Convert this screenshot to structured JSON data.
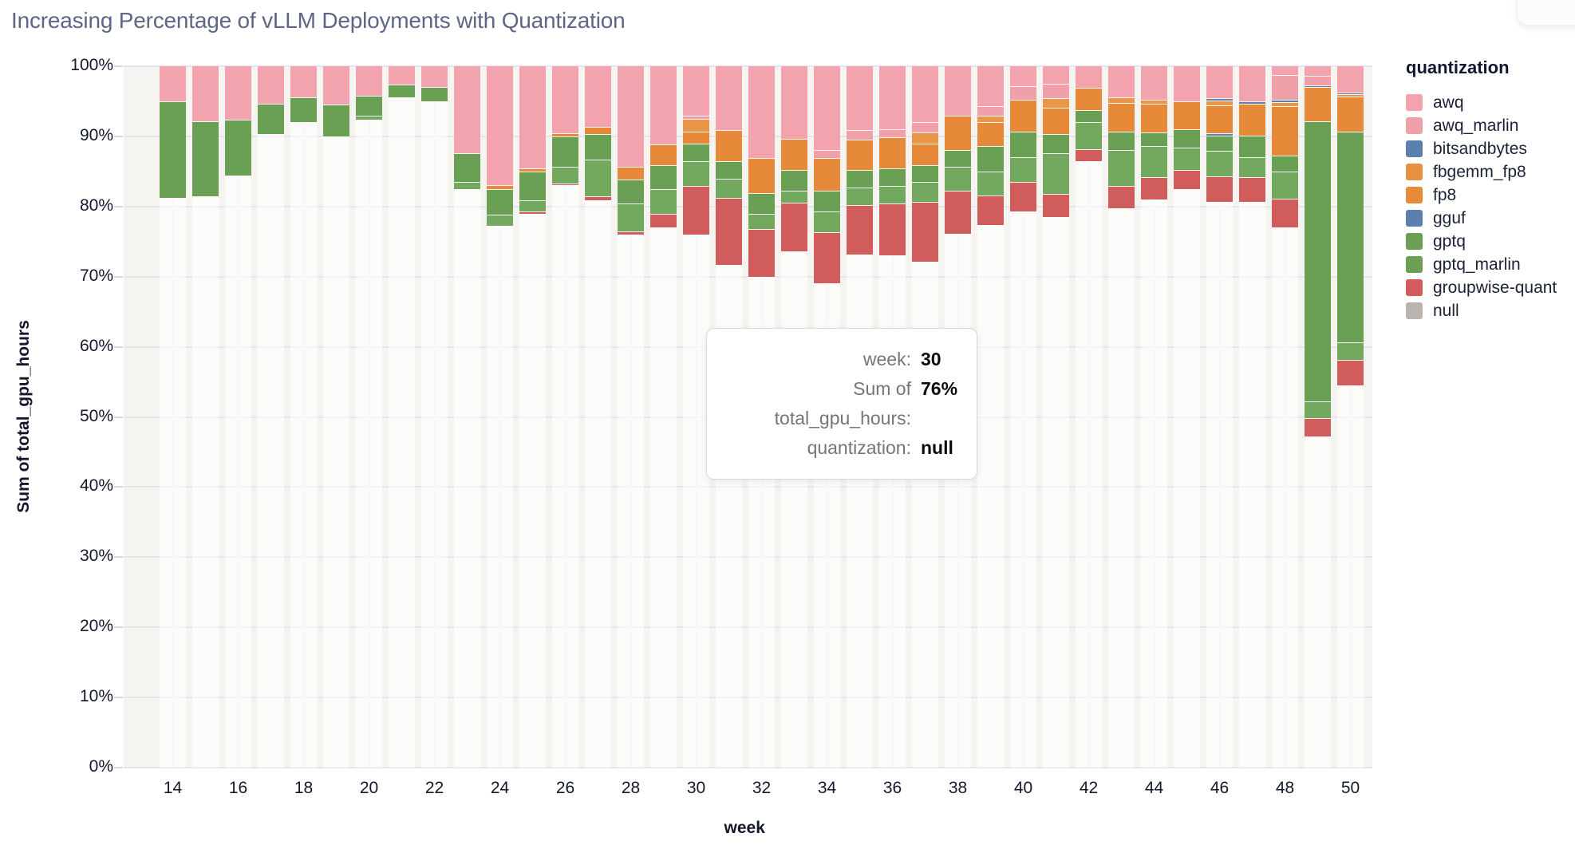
{
  "title": "Increasing Percentage of vLLM Deployments with Quantization",
  "tooltip": {
    "rows": [
      {
        "label": "week:",
        "value": "30"
      },
      {
        "label": "Sum of total_gpu_hours:",
        "value": "76%"
      },
      {
        "label": "quantization:",
        "value": "null"
      }
    ]
  },
  "legend": {
    "title": "quantization",
    "items": [
      {
        "label": "awq",
        "color": "#f2a3ae"
      },
      {
        "label": "awq_marlin",
        "color": "#f0a0a9"
      },
      {
        "label": "bitsandbytes",
        "color": "#5c80ad"
      },
      {
        "label": "fbgemm_fp8",
        "color": "#e89140"
      },
      {
        "label": "fp8",
        "color": "#e68b39"
      },
      {
        "label": "gguf",
        "color": "#5c80ad"
      },
      {
        "label": "gptq",
        "color": "#6ba054"
      },
      {
        "label": "gptq_marlin",
        "color": "#6ba054"
      },
      {
        "label": "groupwise-quant",
        "color": "#d45b5b"
      },
      {
        "label": "null",
        "color": "#bab4b1"
      }
    ]
  },
  "chart_data": {
    "type": "bar",
    "stacked": true,
    "percent": true,
    "title": "Increasing Percentage of vLLM Deployments with Quantization",
    "xlabel": "week",
    "ylabel": "Sum of total_gpu_hours",
    "ylim": [
      0,
      100
    ],
    "grid": true,
    "legend_position": "right",
    "x_ticks": [
      14,
      16,
      18,
      20,
      22,
      24,
      26,
      28,
      30,
      32,
      34,
      36,
      38,
      40,
      42,
      44,
      46,
      48,
      50
    ],
    "y_ticks_pct": [
      0,
      10,
      20,
      30,
      40,
      50,
      60,
      70,
      80,
      90,
      100
    ],
    "series_order_top_to_bottom": [
      "awq",
      "awq_marlin",
      "bitsandbytes",
      "fbgemm_fp8",
      "fp8",
      "gguf",
      "gptq",
      "gptq_marlin",
      "groupwise-quant",
      "null"
    ],
    "colors": {
      "awq": "#f2a3ae",
      "awq_marlin": "#efa0a8",
      "bitsandbytes": "#5c80ad",
      "fbgemm_fp8": "#ea9647",
      "fp8": "#e68a39",
      "gguf": "#5c80ad",
      "gptq": "#6aa053",
      "gptq_marlin": "#73a85f",
      "groupwise-quant": "#d15c5c",
      "null": "rgba(255,255,255,0.6)"
    },
    "bars": [
      {
        "week": 14,
        "segments": {
          "awq": 5.0,
          "gptq": 13.8,
          "null": 81.2
        }
      },
      {
        "week": 15,
        "segments": {
          "awq": 7.8,
          "gptq": 10.8,
          "null": 81.4
        }
      },
      {
        "week": 16,
        "segments": {
          "awq": 7.6,
          "gptq": 8.0,
          "null": 84.4
        }
      },
      {
        "week": 17,
        "segments": {
          "awq": 5.3,
          "gptq": 4.4,
          "null": 90.3
        }
      },
      {
        "week": 18,
        "segments": {
          "awq": 4.4,
          "gptq": 3.6,
          "null": 92.0
        }
      },
      {
        "week": 19,
        "segments": {
          "awq": 5.5,
          "gptq": 4.5,
          "null": 90.0
        }
      },
      {
        "week": 20,
        "segments": {
          "awq": 4.2,
          "gptq": 2.8,
          "gptq_marlin": 0.6,
          "null": 92.4
        }
      },
      {
        "week": 21,
        "segments": {
          "awq": 2.6,
          "gptq": 1.8,
          "null": 95.6
        }
      },
      {
        "week": 22,
        "segments": {
          "awq": 3.0,
          "gptq": 2.0,
          "null": 95.0
        }
      },
      {
        "week": 23,
        "segments": {
          "awq": 12.4,
          "gptq": 4.1,
          "gptq_marlin": 1.0,
          "null": 82.5
        }
      },
      {
        "week": 24,
        "segments": {
          "awq": 17.0,
          "fp8": 0.5,
          "gptq": 3.7,
          "gptq_marlin": 1.6,
          "null": 77.2
        }
      },
      {
        "week": 25,
        "segments": {
          "awq": 14.6,
          "fp8": 0.4,
          "gptq": 4.1,
          "gptq_marlin": 1.6,
          "groupwise-quant": 0.4,
          "null": 78.9
        }
      },
      {
        "week": 26,
        "segments": {
          "awq": 9.6,
          "fp8": 0.4,
          "gptq": 4.3,
          "gptq_marlin": 2.4,
          "groupwise-quant": 0.3,
          "null": 83.0
        }
      },
      {
        "week": 27,
        "segments": {
          "awq": 8.6,
          "fp8": 1.1,
          "gptq": 3.6,
          "gptq_marlin": 5.3,
          "groupwise-quant": 0.5,
          "null": 80.9
        }
      },
      {
        "week": 28,
        "segments": {
          "awq": 14.3,
          "fp8": 1.9,
          "gptq": 3.4,
          "gptq_marlin": 4.0,
          "groupwise-quant": 0.4,
          "null": 76.0
        }
      },
      {
        "week": 29,
        "segments": {
          "awq": 11.2,
          "fp8": 2.9,
          "gptq": 3.4,
          "gptq_marlin": 3.6,
          "groupwise-quant": 1.9,
          "null": 77.0
        }
      },
      {
        "week": 30,
        "segments": {
          "awq": 7.1,
          "awq_marlin": 0.4,
          "fbgemm_fp8": 1.8,
          "fp8": 1.7,
          "gptq": 2.5,
          "gptq_marlin": 3.6,
          "groupwise-quant": 6.9,
          "null": 76.0
        }
      },
      {
        "week": 31,
        "segments": {
          "awq": 9.1,
          "fp8": 4.4,
          "gptq": 2.5,
          "gptq_marlin": 2.8,
          "groupwise-quant": 9.5,
          "null": 71.7
        }
      },
      {
        "week": 32,
        "segments": {
          "awq": 13.1,
          "fp8": 5.0,
          "gptq": 3.0,
          "gptq_marlin": 2.1,
          "groupwise-quant": 6.8,
          "null": 70.0
        }
      },
      {
        "week": 33,
        "segments": {
          "awq": 10.3,
          "fp8": 4.5,
          "gptq": 2.9,
          "gptq_marlin": 1.7,
          "groupwise-quant": 7.0,
          "null": 73.6
        }
      },
      {
        "week": 34,
        "segments": {
          "awq": 12.0,
          "awq_marlin": 1.1,
          "fp8": 4.6,
          "gptq": 3.0,
          "gptq_marlin": 3.0,
          "groupwise-quant": 7.3,
          "null": 69.0
        }
      },
      {
        "week": 35,
        "segments": {
          "awq": 9.1,
          "awq_marlin": 1.4,
          "fp8": 4.3,
          "gptq": 2.5,
          "gptq_marlin": 2.5,
          "groupwise-quant": 7.0,
          "null": 73.2
        }
      },
      {
        "week": 36,
        "segments": {
          "awq": 9.0,
          "awq_marlin": 1.1,
          "fp8": 4.5,
          "gptq": 2.5,
          "gptq_marlin": 2.5,
          "groupwise-quant": 7.4,
          "null": 73.0
        }
      },
      {
        "week": 37,
        "segments": {
          "awq": 8.0,
          "awq_marlin": 1.5,
          "fbgemm_fp8": 1.5,
          "fp8": 3.1,
          "gptq": 2.4,
          "gptq_marlin": 2.9,
          "groupwise-quant": 8.5,
          "null": 72.1
        }
      },
      {
        "week": 38,
        "segments": {
          "awq": 7.0,
          "fp8": 5.0,
          "gptq": 2.3,
          "gptq_marlin": 3.4,
          "groupwise-quant": 6.2,
          "null": 76.1
        }
      },
      {
        "week": 39,
        "segments": {
          "awq": 5.7,
          "awq_marlin": 1.3,
          "fbgemm_fp8": 1.0,
          "fp8": 3.4,
          "gptq": 3.6,
          "gptq_marlin": 3.4,
          "groupwise-quant": 4.2,
          "null": 77.4
        }
      },
      {
        "week": 40,
        "segments": {
          "awq": 2.9,
          "awq_marlin": 1.9,
          "fp8": 4.5,
          "gptq": 3.7,
          "gptq_marlin": 3.5,
          "groupwise-quant": 4.2,
          "null": 79.3
        }
      },
      {
        "week": 41,
        "segments": {
          "awq": 2.5,
          "awq_marlin": 2.1,
          "fbgemm_fp8": 1.3,
          "fp8": 3.8,
          "gptq": 2.7,
          "gptq_marlin": 5.8,
          "groupwise-quant": 3.3,
          "null": 78.5
        }
      },
      {
        "week": 42,
        "segments": {
          "awq": 3.1,
          "fp8": 3.2,
          "gptq": 1.7,
          "gptq_marlin": 3.8,
          "groupwise-quant": 1.7,
          "null": 86.5
        }
      },
      {
        "week": 43,
        "segments": {
          "awq": 4.4,
          "fbgemm_fp8": 0.8,
          "fp8": 4.1,
          "gptq": 2.7,
          "gptq_marlin": 5.1,
          "groupwise-quant": 3.2,
          "null": 79.7
        }
      },
      {
        "week": 44,
        "segments": {
          "awq": 4.8,
          "fbgemm_fp8": 0.5,
          "fp8": 4.2,
          "gptq": 1.9,
          "gptq_marlin": 4.4,
          "groupwise-quant": 3.2,
          "null": 81.0
        }
      },
      {
        "week": 45,
        "segments": {
          "awq": 5.0,
          "fp8": 4.0,
          "gptq": 2.6,
          "gptq_marlin": 3.2,
          "groupwise-quant": 2.7,
          "null": 82.5
        }
      },
      {
        "week": 46,
        "segments": {
          "awq": 4.6,
          "bitsandbytes": 0.3,
          "fbgemm_fp8": 0.7,
          "fp8": 4.0,
          "gguf": 0.3,
          "gptq": 2.2,
          "gptq_marlin": 3.6,
          "groupwise-quant": 3.6,
          "null": 80.7
        }
      },
      {
        "week": 47,
        "segments": {
          "awq": 5.0,
          "bitsandbytes": 0.3,
          "fp8": 4.6,
          "gptq": 3.1,
          "gptq_marlin": 2.8,
          "groupwise-quant": 3.6,
          "null": 80.6
        }
      },
      {
        "week": 48,
        "segments": {
          "awq": 1.2,
          "awq_marlin": 3.6,
          "bitsandbytes": 0.3,
          "fbgemm_fp8": 0.6,
          "fp8": 7.1,
          "gptq": 2.2,
          "gptq_marlin": 3.9,
          "groupwise-quant": 4.1,
          "null": 77.0
        }
      },
      {
        "week": 49,
        "segments": {
          "awq": 1.4,
          "awq_marlin": 1.3,
          "bitsandbytes": 0.3,
          "fp8": 4.9,
          "gptq": 39.9,
          "gptq_marlin": 2.4,
          "groupwise-quant": 2.6,
          "null": 47.2
        }
      },
      {
        "week": 50,
        "segments": {
          "awq": 3.7,
          "bitsandbytes": 0.3,
          "fbgemm_fp8": 0.3,
          "fp8": 5.0,
          "gptq": 30.1,
          "gptq_marlin": 2.5,
          "groupwise-quant": 3.6,
          "null": 54.5
        }
      }
    ]
  }
}
